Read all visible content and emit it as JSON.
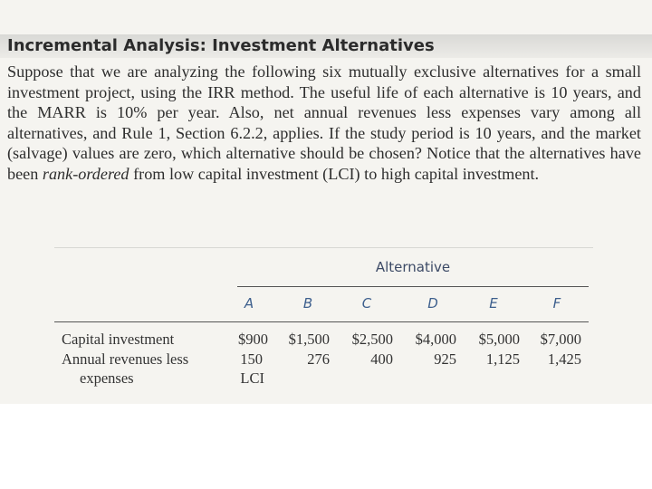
{
  "header": {
    "title": "Incremental Analysis: Investment Alternatives"
  },
  "body": {
    "paragraph": [
      "Suppose that we are analyzing the following six mutually exclusive alternatives for a small investment project, using the IRR method. The useful life of each alternative is 10 years, and the MARR is 10% per year. Also, net annual revenues less expenses vary among all alternatives, and Rule 1, Section 6.2.2, applies. If the study period is 10 years, and the market (salvage) values are zero, which alternative should be chosen? Notice that the alternatives have been ",
      "rank-ordered",
      " from low capital investment (LCI) to high capital investment."
    ]
  },
  "table": {
    "group_header": "Alternative",
    "columns": [
      "A",
      "B",
      "C",
      "D",
      "E",
      "F"
    ],
    "rows": [
      [
        "Capital investment",
        "$900",
        "$1,500",
        "$2,500",
        "$4,000",
        "$5,000",
        "$7,000"
      ],
      [
        "Annual revenues less expenses",
        "150",
        "276",
        "400",
        "925",
        "1,125",
        "1,425"
      ]
    ],
    "note": "LCI"
  }
}
